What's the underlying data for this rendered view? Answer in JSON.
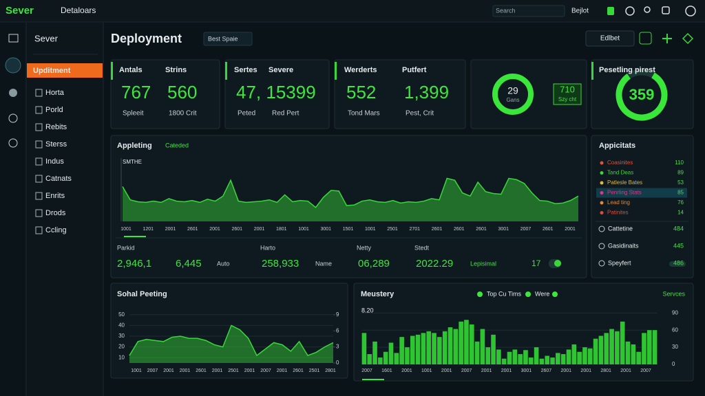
{
  "topbar": {
    "brand": "Sever",
    "menu": "Detaloars",
    "search": "Search",
    "select": "Bejlot"
  },
  "sidebar": {
    "title": "Sever",
    "items": [
      "Upditment",
      "Horta",
      "Porld",
      "Rebits",
      "Sterss",
      "Indus",
      "Catnats",
      "Enrits",
      "Drods",
      "Ccling"
    ]
  },
  "header": {
    "title": "Deployment",
    "select": "Best Spaie",
    "button": "Edlbet"
  },
  "kpis": [
    {
      "label": "Antals",
      "value": "767",
      "caption": "Spleeit"
    },
    {
      "label": "Strins",
      "value": "560",
      "caption": "1800 Crit"
    },
    {
      "label": "Sertes",
      "value": "47, 15399",
      "caption": "Peted"
    },
    {
      "label": "Severe",
      "value": "",
      "caption": "Red Pert"
    },
    {
      "label": "Werderts",
      "value": "552",
      "caption": "Tond Mars"
    },
    {
      "label": "Putfert",
      "value": "1,399",
      "caption": "Pest, Crit"
    }
  ],
  "gauge1": {
    "value": "29",
    "caption": "Gans",
    "badge": "710",
    "badge_caption": "Szy cht"
  },
  "gauge2": {
    "title": "Pesetling pirest",
    "value": "359"
  },
  "main_chart": {
    "type": "area",
    "title": "Appleting",
    "tab": "Cateded",
    "axis_label": "SMTHE",
    "color": "#39d83a",
    "x_labels": [
      "1001",
      "1201",
      "2001",
      "2601",
      "2001",
      "2601",
      "2001",
      "1801",
      "1001",
      "3001",
      "1501",
      "1001",
      "2501",
      "2701",
      "2601",
      "2601",
      "2601",
      "3001",
      "2007",
      "2601",
      "2001"
    ],
    "ylim": [
      0,
      10
    ],
    "values": [
      5.5,
      3.4,
      3.1,
      3.0,
      3.2,
      3.0,
      3.6,
      3.2,
      3.1,
      3.3,
      3.0,
      3.5,
      3.2,
      4.0,
      6.5,
      3.2,
      3.0,
      3.1,
      3.2,
      3.4,
      3.0,
      4.2,
      3.1,
      3.3,
      3.2,
      2.2,
      3.8,
      4.9,
      4.8,
      2.5,
      2.6,
      3.2,
      3.4,
      3.1,
      3.0,
      3.3,
      2.9,
      3.1,
      3.0,
      3.2,
      3.6,
      3.4,
      6.8,
      6.5,
      4.5,
      4.0,
      6.2,
      4.7,
      4.4,
      4.3,
      6.8,
      6.6,
      6.0,
      4.5,
      3.3,
      3.2,
      2.8,
      2.9,
      3.3,
      4.0
    ]
  },
  "stats": [
    {
      "label": "Parkid",
      "values": [
        "2,946,1",
        "6,445"
      ],
      "unit": "Auto"
    },
    {
      "label": "Harto",
      "values": [
        "258,933"
      ],
      "unit": "Name"
    },
    {
      "label": "Netty",
      "values": [
        "06,289"
      ]
    },
    {
      "label": "Stedt",
      "values": [
        "2022.29"
      ],
      "unit": "Lepisimal",
      "extra": "17"
    }
  ],
  "apps": {
    "title": "Appicitats",
    "items": [
      {
        "name": "Coasinites",
        "value": "110",
        "color": "#e0533a"
      },
      {
        "name": "Tand Deas",
        "value": "89",
        "color": "#3ad83a"
      },
      {
        "name": "Patlesle Bates",
        "value": "53",
        "color": "#e0b83a"
      },
      {
        "name": "Penrling Stats",
        "value": "85",
        "color": "#d83a8a"
      },
      {
        "name": "Lead ting",
        "value": "76",
        "color": "#e0893a"
      },
      {
        "name": "Patinites",
        "value": "14",
        "color": "#e04a3a"
      }
    ],
    "totals": [
      {
        "name": "Cattetine",
        "value": "484"
      },
      {
        "name": "Gasidinaits",
        "value": "445"
      },
      {
        "name": "Speyfert",
        "value": "486"
      }
    ]
  },
  "social_chart": {
    "type": "area",
    "title": "Sohal Peeting",
    "color": "#39d83a",
    "ylim": [
      5,
      55
    ],
    "yticks": [
      10,
      20,
      30,
      40,
      50
    ],
    "y2lim": [
      0,
      10
    ],
    "y2ticks": [
      0,
      3,
      6,
      9
    ],
    "x_labels": [
      "1001",
      "2007",
      "2001",
      "2001",
      "2601",
      "2001",
      "2501",
      "2001",
      "2007",
      "2001",
      "2601",
      "2501",
      "2801"
    ],
    "values": [
      12,
      25,
      27,
      26,
      25,
      29,
      30,
      28,
      28,
      26,
      22,
      20,
      40,
      36,
      28,
      12,
      18,
      24,
      22,
      16,
      25,
      12,
      15,
      20,
      24
    ]
  },
  "history_chart": {
    "type": "bar",
    "title": "Meustery",
    "legend": [
      "Top Cu Tims",
      "Were"
    ],
    "link": "Servces",
    "label": "8.20",
    "color": "#2fc432",
    "ylim": [
      0,
      100
    ],
    "yticks": [
      0,
      30,
      60,
      90
    ],
    "x_labels": [
      "2007",
      "1601",
      "2001",
      "1001",
      "2001",
      "2007",
      "2001",
      "2001",
      "3001",
      "2607",
      "2001",
      "2001",
      "2801",
      "2001",
      "2007"
    ],
    "values": [
      55,
      18,
      40,
      12,
      22,
      38,
      20,
      48,
      30,
      50,
      52,
      55,
      58,
      55,
      48,
      58,
      65,
      62,
      75,
      78,
      70,
      40,
      62,
      30,
      52,
      26,
      10,
      22,
      26,
      18,
      25,
      12,
      30,
      10,
      15,
      12,
      20,
      18,
      26,
      35,
      22,
      30,
      28,
      45,
      50,
      55,
      62,
      58,
      75,
      40,
      35,
      22,
      55,
      60,
      60
    ]
  }
}
